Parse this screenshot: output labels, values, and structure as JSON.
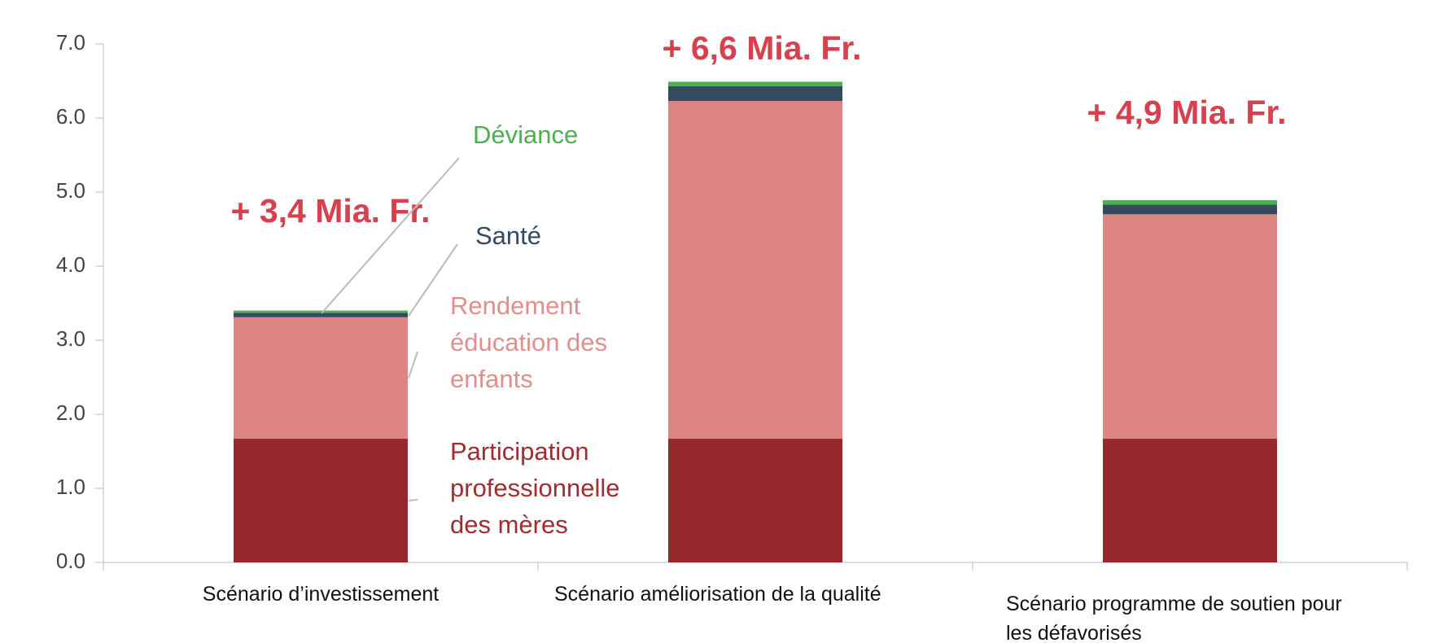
{
  "chart_data": {
    "type": "stacked_bar",
    "categories": [
      "Scénario d’investissement",
      "Scénario améliorisation de la qualité",
      "Scénario programme de soutien pour les défavorisés"
    ],
    "series": [
      {
        "name": "Participation professionnelle des mères",
        "color": "#95282b",
        "values": [
          1.67,
          1.67,
          1.67
        ]
      },
      {
        "name": "Rendement éducation des enfants",
        "color": "#db8481",
        "values": [
          1.64,
          4.56,
          3.03
        ]
      },
      {
        "name": "Santé",
        "color": "#344a5e",
        "values": [
          0.06,
          0.2,
          0.13
        ]
      },
      {
        "name": "Déviance",
        "color": "#4caf50",
        "values": [
          0.03,
          0.06,
          0.06
        ]
      }
    ],
    "annotations": [
      "+ 3,4 Mia. Fr.",
      "+ 6,6 Mia. Fr.",
      "+ 4,9 Mia. Fr."
    ],
    "ylim": [
      0,
      7
    ],
    "yticks": [
      {
        "value": 0,
        "label": "0.0"
      },
      {
        "value": 1,
        "label": "1.0"
      },
      {
        "value": 2,
        "label": "2.0"
      },
      {
        "value": 3,
        "label": "3.0"
      },
      {
        "value": 4,
        "label": "4.0"
      },
      {
        "value": 5,
        "label": "5.0"
      },
      {
        "value": 6,
        "label": "6.0"
      },
      {
        "value": 7,
        "label": "7.0"
      }
    ]
  }
}
